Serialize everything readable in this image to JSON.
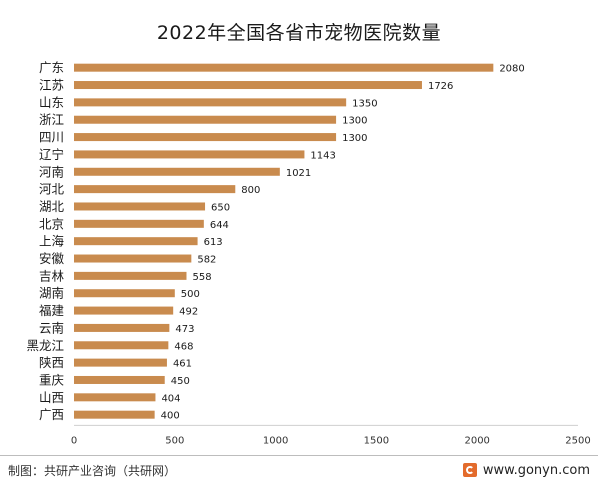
{
  "chart_data": {
    "type": "bar",
    "orientation": "horizontal",
    "title": "2022年全国各省市宠物医院数量",
    "categories": [
      "广东",
      "江苏",
      "山东",
      "浙江",
      "四川",
      "辽宁",
      "河南",
      "河北",
      "湖北",
      "北京",
      "上海",
      "安徽",
      "吉林",
      "湖南",
      "福建",
      "云南",
      "黑龙江",
      "陕西",
      "重庆",
      "山西",
      "广西"
    ],
    "values": [
      2080,
      1726,
      1350,
      1300,
      1300,
      1143,
      1021,
      800,
      650,
      644,
      613,
      582,
      558,
      500,
      492,
      473,
      468,
      461,
      450,
      404,
      400
    ],
    "xlim": [
      0,
      2500
    ],
    "xticks": [
      0,
      500,
      1000,
      1500,
      2000,
      2500
    ],
    "grid": false,
    "bar_color": "#c98b4e",
    "data_labels": true
  },
  "footer": {
    "source": "制图：共研产业咨询（共研网）",
    "brand_url": "www.gonyn.com",
    "brand_icon": "gonyn-logo-icon",
    "brand_color": "#e36b2c"
  }
}
